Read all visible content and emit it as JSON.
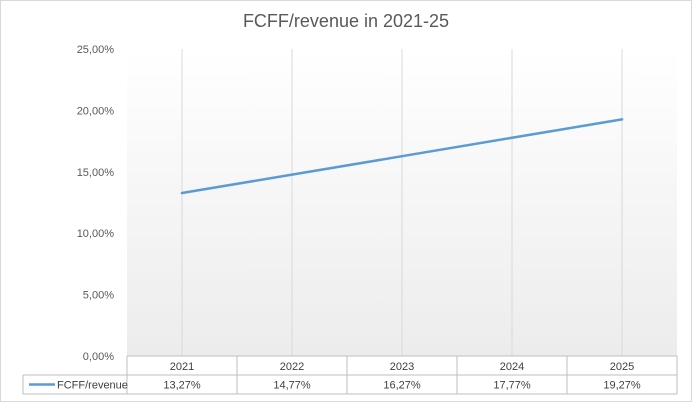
{
  "chart_data": {
    "type": "line",
    "title": "FCFF/revenue in 2021-25",
    "categories": [
      "2021",
      "2022",
      "2023",
      "2024",
      "2025"
    ],
    "series": [
      {
        "name": "FCFF/revenue",
        "values": [
          13.27,
          14.77,
          16.27,
          17.77,
          19.27
        ],
        "labels": [
          "13,27%",
          "14,77%",
          "16,27%",
          "17,77%",
          "19,27%"
        ],
        "color": "#5b9bd5"
      }
    ],
    "y_ticks": [
      "0,00%",
      "5,00%",
      "10,00%",
      "15,00%",
      "20,00%",
      "25,00%"
    ],
    "ylim": [
      0,
      25
    ],
    "grid": "vertical category lines",
    "legend": "data table row"
  }
}
